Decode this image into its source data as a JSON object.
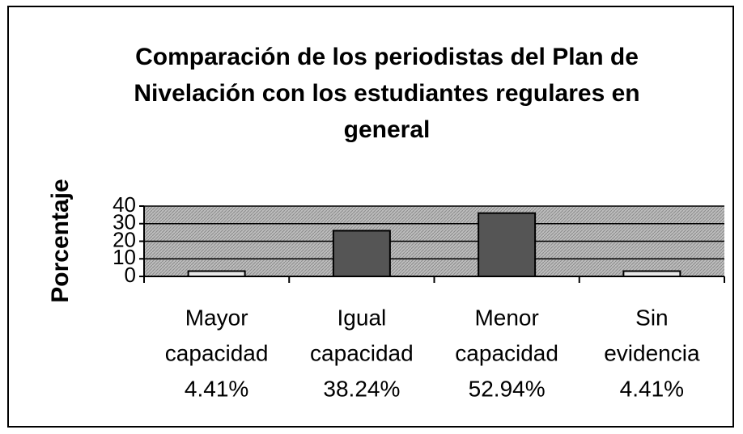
{
  "chart_data": {
    "type": "bar",
    "title": [
      "Comparación de los periodistas del Plan de",
      "Nivelación con los estudiantes regulares en",
      "general"
    ],
    "y_label": "Porcentaje",
    "categories": [
      [
        "Mayor",
        "capacidad",
        "4.41%"
      ],
      [
        "Igual",
        "capacidad",
        "38.24%"
      ],
      [
        "Menor",
        "capacidad",
        "52.94%"
      ],
      [
        "Sin",
        "evidencia",
        "4.41%"
      ]
    ],
    "values": [
      3,
      26,
      36,
      3
    ],
    "colors": [
      "#e8e8e8",
      "#555555",
      "#555555",
      "#e8e8e8"
    ],
    "ylim": [
      0,
      40
    ],
    "yticks": [
      0,
      10,
      20,
      30,
      40
    ],
    "grid": true
  }
}
